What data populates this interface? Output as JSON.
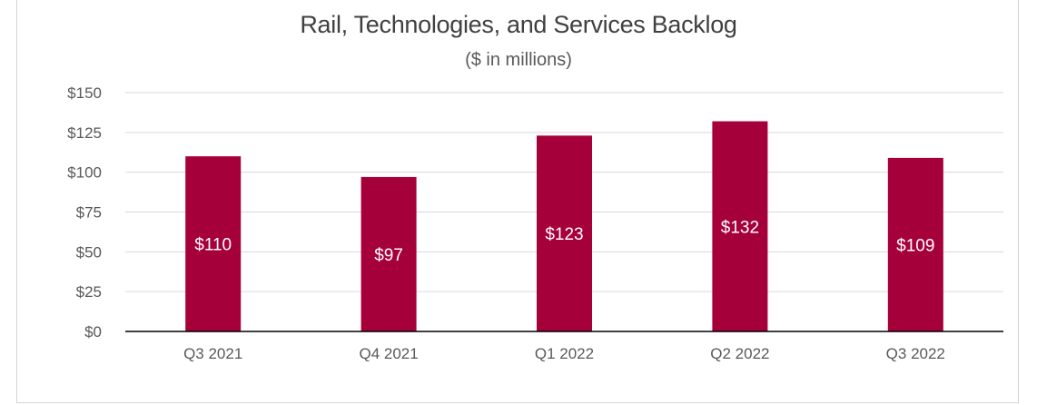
{
  "chart_data": {
    "type": "bar",
    "title": "Rail, Technologies, and Services Backlog",
    "subtitle": "($ in millions)",
    "xlabel": "",
    "ylabel": "",
    "categories": [
      "Q3 2021",
      "Q4 2021",
      "Q1 2022",
      "Q2 2022",
      "Q3 2022"
    ],
    "values": [
      110,
      97,
      123,
      132,
      109
    ],
    "data_labels": [
      "$110",
      "$97",
      "$123",
      "$132",
      "$109"
    ],
    "ylim": [
      0,
      150
    ],
    "y_ticks": [
      0,
      25,
      50,
      75,
      100,
      125,
      150
    ],
    "y_tick_labels": [
      "$0",
      "$25",
      "$50",
      "$75",
      "$100",
      "$125",
      "$150"
    ],
    "grid": true,
    "legend": "none",
    "colors": {
      "bar": "#A6003A",
      "grid": "#D9D9D9",
      "axis": "#000000"
    }
  }
}
